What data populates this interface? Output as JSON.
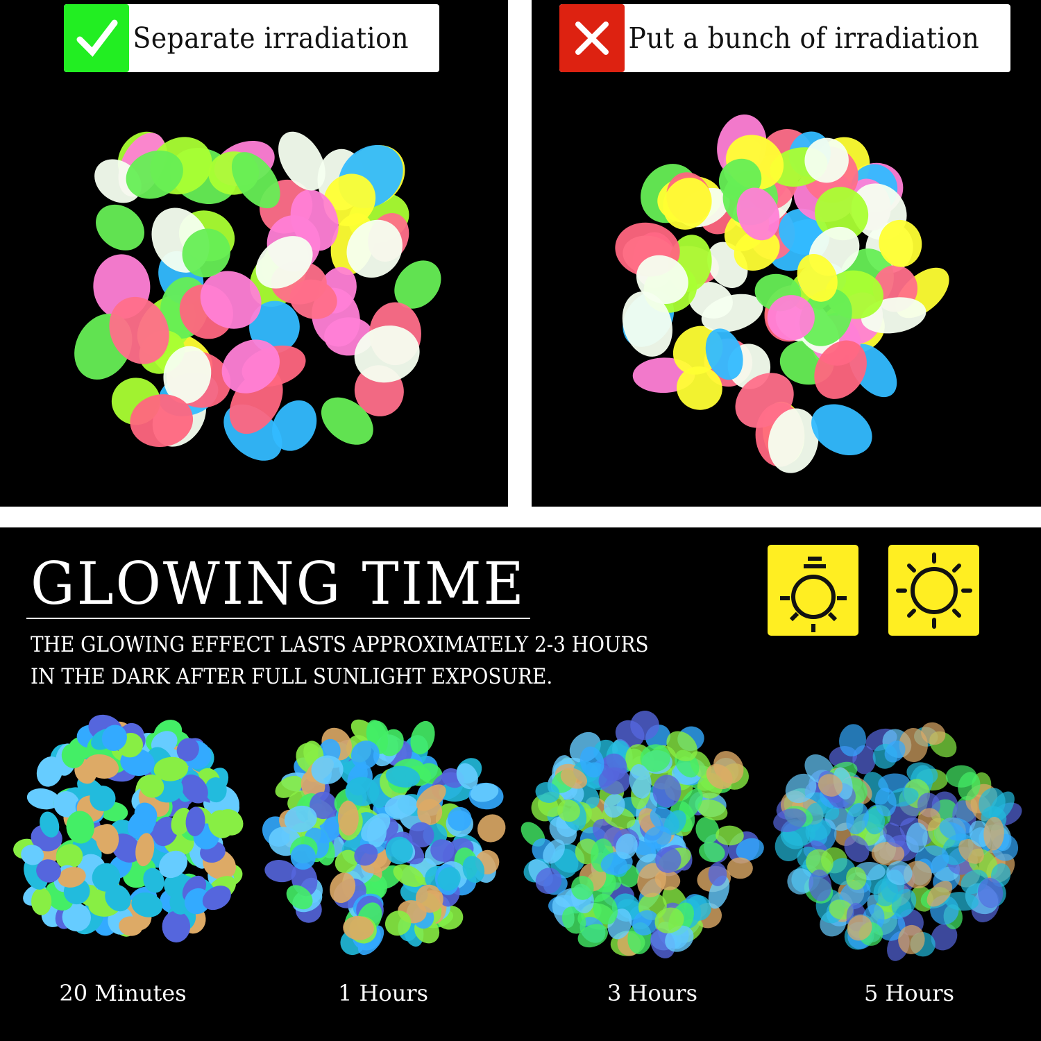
{
  "top_left": {
    "label": "Separate irradiation",
    "icon": "check-icon",
    "badge_color": "#22ee22"
  },
  "top_right": {
    "label": "Put a bunch of irradiation",
    "icon": "x-icon",
    "badge_color": "#dd2211"
  },
  "bottom": {
    "title": "GLOWING TIME",
    "description_line1": "THE GLOWING EFFECT LASTS APPROXIMATELY 2-3 HOURS",
    "description_line2": "IN THE DARK AFTER FULL SUNLIGHT EXPOSURE.",
    "icons": [
      "dim-light-icon",
      "sun-icon"
    ],
    "icon_color": "#ffee22",
    "stages": [
      {
        "caption": "20 Minutes"
      },
      {
        "caption": "1 Hours"
      },
      {
        "caption": "3 Hours"
      },
      {
        "caption": "5 Hours"
      }
    ]
  },
  "colors": {
    "daylight_pebbles": [
      "#ff6f8a",
      "#ff7fd6",
      "#ffff33",
      "#33bbff",
      "#66ee55",
      "#f5fff0",
      "#ff6680",
      "#aaff33"
    ],
    "glow_pebbles": [
      "#33aaff",
      "#44ee66",
      "#66ccff",
      "#ddaa66",
      "#5566dd",
      "#22bbdd",
      "#88ee44"
    ]
  }
}
